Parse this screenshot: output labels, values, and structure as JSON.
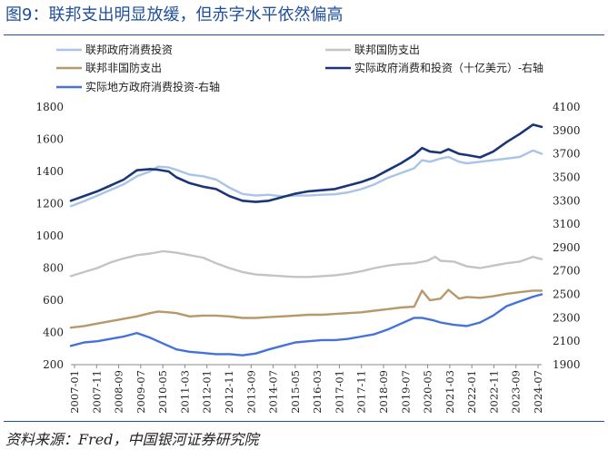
{
  "header": {
    "title": "图9：联邦支出明显放缓，但赤字水平依然偏高"
  },
  "footer": {
    "source": "资料来源：Fred，中国银河证券研究院"
  },
  "colors": {
    "title": "#1f4e9a",
    "s1": "#a9c4e6",
    "s2": "#c4c4c4",
    "s3": "#b8976a",
    "s4": "#1a3578",
    "s5": "#4472d8"
  },
  "chart_data": {
    "type": "line",
    "title": "",
    "xlabel": "",
    "ylabel": "",
    "ylim": [
      200,
      1800
    ],
    "y2lim": [
      1900,
      4100
    ],
    "yticks": [
      200,
      400,
      600,
      800,
      1000,
      1200,
      1400,
      1600,
      1800
    ],
    "y2ticks": [
      1900,
      2100,
      2300,
      2500,
      2700,
      2900,
      3100,
      3300,
      3500,
      3700,
      3900,
      4100
    ],
    "xticks": [
      "2007-01",
      "2007-11",
      "2008-09",
      "2009-07",
      "2010-05",
      "2011-03",
      "2012-01",
      "2012-11",
      "2013-09",
      "2014-07",
      "2015-05",
      "2016-03",
      "2017-01",
      "2017-11",
      "2018-09",
      "2019-07",
      "2020-05",
      "2021-03",
      "2022-01",
      "2022-11",
      "2023-09",
      "2024-07"
    ],
    "x_range": [
      2007.0,
      2024.83
    ],
    "series": [
      {
        "name": "联邦政府消费投资",
        "axis": "left",
        "color": "#a9c4e6",
        "points": [
          [
            2007.0,
            1185
          ],
          [
            2007.5,
            1215
          ],
          [
            2008.0,
            1250
          ],
          [
            2008.5,
            1285
          ],
          [
            2009.0,
            1320
          ],
          [
            2009.5,
            1370
          ],
          [
            2010.0,
            1400
          ],
          [
            2010.3,
            1430
          ],
          [
            2010.7,
            1425
          ],
          [
            2011.0,
            1410
          ],
          [
            2011.5,
            1380
          ],
          [
            2012.0,
            1370
          ],
          [
            2012.5,
            1350
          ],
          [
            2013.0,
            1300
          ],
          [
            2013.5,
            1260
          ],
          [
            2014.0,
            1250
          ],
          [
            2014.5,
            1255
          ],
          [
            2015.0,
            1245
          ],
          [
            2015.5,
            1250
          ],
          [
            2016.0,
            1250
          ],
          [
            2016.5,
            1255
          ],
          [
            2017.0,
            1258
          ],
          [
            2017.5,
            1270
          ],
          [
            2018.0,
            1290
          ],
          [
            2018.5,
            1320
          ],
          [
            2019.0,
            1360
          ],
          [
            2019.5,
            1390
          ],
          [
            2020.0,
            1420
          ],
          [
            2020.3,
            1470
          ],
          [
            2020.6,
            1460
          ],
          [
            2021.0,
            1480
          ],
          [
            2021.3,
            1490
          ],
          [
            2021.7,
            1460
          ],
          [
            2022.0,
            1450
          ],
          [
            2022.5,
            1460
          ],
          [
            2023.0,
            1470
          ],
          [
            2023.5,
            1480
          ],
          [
            2024.0,
            1490
          ],
          [
            2024.5,
            1530
          ],
          [
            2024.83,
            1510
          ]
        ]
      },
      {
        "name": "联邦国防支出",
        "axis": "left",
        "color": "#c4c4c4",
        "points": [
          [
            2007.0,
            750
          ],
          [
            2007.5,
            775
          ],
          [
            2008.0,
            800
          ],
          [
            2008.5,
            835
          ],
          [
            2009.0,
            860
          ],
          [
            2009.5,
            880
          ],
          [
            2010.0,
            890
          ],
          [
            2010.5,
            905
          ],
          [
            2011.0,
            895
          ],
          [
            2011.5,
            880
          ],
          [
            2012.0,
            865
          ],
          [
            2012.5,
            830
          ],
          [
            2013.0,
            800
          ],
          [
            2013.5,
            775
          ],
          [
            2014.0,
            760
          ],
          [
            2014.5,
            755
          ],
          [
            2015.0,
            750
          ],
          [
            2015.5,
            745
          ],
          [
            2016.0,
            745
          ],
          [
            2016.5,
            750
          ],
          [
            2017.0,
            755
          ],
          [
            2017.5,
            765
          ],
          [
            2018.0,
            780
          ],
          [
            2018.5,
            800
          ],
          [
            2019.0,
            815
          ],
          [
            2019.5,
            825
          ],
          [
            2020.0,
            830
          ],
          [
            2020.5,
            845
          ],
          [
            2020.8,
            870
          ],
          [
            2021.0,
            845
          ],
          [
            2021.5,
            840
          ],
          [
            2022.0,
            810
          ],
          [
            2022.5,
            800
          ],
          [
            2023.0,
            815
          ],
          [
            2023.5,
            830
          ],
          [
            2024.0,
            840
          ],
          [
            2024.5,
            870
          ],
          [
            2024.83,
            855
          ]
        ]
      },
      {
        "name": "联邦非国防支出",
        "axis": "left",
        "color": "#b8976a",
        "points": [
          [
            2007.0,
            430
          ],
          [
            2007.5,
            440
          ],
          [
            2008.0,
            455
          ],
          [
            2008.5,
            470
          ],
          [
            2009.0,
            485
          ],
          [
            2009.5,
            500
          ],
          [
            2010.0,
            520
          ],
          [
            2010.3,
            530
          ],
          [
            2010.7,
            525
          ],
          [
            2011.0,
            520
          ],
          [
            2011.5,
            500
          ],
          [
            2012.0,
            505
          ],
          [
            2012.5,
            505
          ],
          [
            2013.0,
            500
          ],
          [
            2013.5,
            490
          ],
          [
            2014.0,
            490
          ],
          [
            2014.5,
            495
          ],
          [
            2015.0,
            500
          ],
          [
            2015.5,
            505
          ],
          [
            2016.0,
            510
          ],
          [
            2016.5,
            510
          ],
          [
            2017.0,
            515
          ],
          [
            2017.5,
            520
          ],
          [
            2018.0,
            525
          ],
          [
            2018.5,
            535
          ],
          [
            2019.0,
            545
          ],
          [
            2019.5,
            555
          ],
          [
            2020.0,
            560
          ],
          [
            2020.3,
            660
          ],
          [
            2020.6,
            600
          ],
          [
            2021.0,
            610
          ],
          [
            2021.3,
            665
          ],
          [
            2021.7,
            610
          ],
          [
            2022.0,
            620
          ],
          [
            2022.5,
            615
          ],
          [
            2023.0,
            625
          ],
          [
            2023.5,
            640
          ],
          [
            2024.0,
            650
          ],
          [
            2024.5,
            660
          ],
          [
            2024.83,
            660
          ]
        ]
      },
      {
        "name": "实际政府消费和投资（十亿美元）-右轴",
        "axis": "right",
        "color": "#1a3578",
        "points": [
          [
            2007.0,
            3300
          ],
          [
            2007.5,
            3340
          ],
          [
            2008.0,
            3380
          ],
          [
            2008.5,
            3430
          ],
          [
            2009.0,
            3480
          ],
          [
            2009.5,
            3560
          ],
          [
            2010.0,
            3570
          ],
          [
            2010.3,
            3565
          ],
          [
            2010.7,
            3550
          ],
          [
            2011.0,
            3500
          ],
          [
            2011.5,
            3450
          ],
          [
            2012.0,
            3420
          ],
          [
            2012.5,
            3400
          ],
          [
            2013.0,
            3340
          ],
          [
            2013.5,
            3300
          ],
          [
            2014.0,
            3290
          ],
          [
            2014.5,
            3300
          ],
          [
            2015.0,
            3330
          ],
          [
            2015.5,
            3360
          ],
          [
            2016.0,
            3380
          ],
          [
            2016.5,
            3390
          ],
          [
            2017.0,
            3400
          ],
          [
            2017.5,
            3430
          ],
          [
            2018.0,
            3460
          ],
          [
            2018.5,
            3500
          ],
          [
            2019.0,
            3560
          ],
          [
            2019.5,
            3620
          ],
          [
            2020.0,
            3690
          ],
          [
            2020.3,
            3750
          ],
          [
            2020.6,
            3720
          ],
          [
            2021.0,
            3710
          ],
          [
            2021.3,
            3740
          ],
          [
            2021.7,
            3700
          ],
          [
            2022.0,
            3690
          ],
          [
            2022.5,
            3670
          ],
          [
            2023.0,
            3720
          ],
          [
            2023.5,
            3800
          ],
          [
            2024.0,
            3870
          ],
          [
            2024.5,
            3950
          ],
          [
            2024.83,
            3930
          ]
        ]
      },
      {
        "name": "实际地方政府消费投资-右轴",
        "axis": "right",
        "color": "#4472d8",
        "points": [
          [
            2007.0,
            2060
          ],
          [
            2007.5,
            2090
          ],
          [
            2008.0,
            2100
          ],
          [
            2008.5,
            2120
          ],
          [
            2009.0,
            2140
          ],
          [
            2009.5,
            2170
          ],
          [
            2010.0,
            2130
          ],
          [
            2010.5,
            2080
          ],
          [
            2011.0,
            2030
          ],
          [
            2011.5,
            2010
          ],
          [
            2012.0,
            2000
          ],
          [
            2012.5,
            1990
          ],
          [
            2013.0,
            1990
          ],
          [
            2013.5,
            1980
          ],
          [
            2014.0,
            1995
          ],
          [
            2014.5,
            2030
          ],
          [
            2015.0,
            2060
          ],
          [
            2015.5,
            2090
          ],
          [
            2016.0,
            2100
          ],
          [
            2016.5,
            2110
          ],
          [
            2017.0,
            2110
          ],
          [
            2017.5,
            2120
          ],
          [
            2018.0,
            2140
          ],
          [
            2018.5,
            2160
          ],
          [
            2019.0,
            2200
          ],
          [
            2019.5,
            2250
          ],
          [
            2020.0,
            2300
          ],
          [
            2020.3,
            2300
          ],
          [
            2020.7,
            2280
          ],
          [
            2021.0,
            2260
          ],
          [
            2021.5,
            2240
          ],
          [
            2022.0,
            2230
          ],
          [
            2022.5,
            2260
          ],
          [
            2023.0,
            2320
          ],
          [
            2023.5,
            2400
          ],
          [
            2024.0,
            2440
          ],
          [
            2024.5,
            2480
          ],
          [
            2024.83,
            2500
          ]
        ]
      }
    ]
  }
}
